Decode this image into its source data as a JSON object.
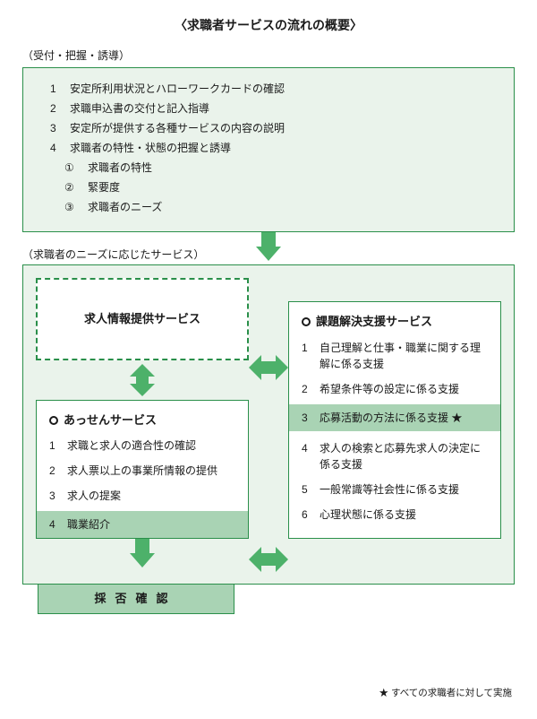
{
  "colors": {
    "accent": "#2a8f4a",
    "accent_fill": "#4db16a",
    "light_bg": "#eaf3eb",
    "highlight_bg": "#a9d3b4",
    "text": "#1a1a1a",
    "white": "#ffffff"
  },
  "title": "〈求職者サービスの流れの概要〉",
  "section1": {
    "label": "（受付・把握・誘導）",
    "items": [
      {
        "n": "1",
        "t": "安定所利用状況とハローワークカードの確認"
      },
      {
        "n": "2",
        "t": "求職申込書の交付と記入指導"
      },
      {
        "n": "3",
        "t": "安定所が提供する各種サービスの内容の説明"
      },
      {
        "n": "4",
        "t": "求職者の特性・状態の把握と誘導"
      }
    ],
    "subitems": [
      {
        "cn": "①",
        "t": "求職者の特性"
      },
      {
        "cn": "②",
        "t": "緊要度"
      },
      {
        "cn": "③",
        "t": "求職者のニーズ"
      }
    ]
  },
  "section2": {
    "label": "（求職者のニーズに応じたサービス）",
    "left_top": {
      "title": "求人情報提供サービス"
    },
    "left_bottom": {
      "title": "あっせんサービス",
      "items": [
        {
          "n": "1",
          "t": "求職と求人の適合性の確認",
          "hl": false
        },
        {
          "n": "2",
          "t": "求人票以上の事業所情報の提供",
          "hl": false
        },
        {
          "n": "3",
          "t": "求人の提案",
          "hl": false
        },
        {
          "n": "4",
          "t": "職業紹介",
          "hl": true
        }
      ]
    },
    "right": {
      "title": "課題解決支援サービス",
      "items": [
        {
          "n": "1",
          "t": "自己理解と仕事・職業に関する理解に係る支援",
          "hl": false
        },
        {
          "n": "2",
          "t": "希望条件等の設定に係る支援",
          "hl": false
        },
        {
          "n": "3",
          "t": "応募活動の方法に係る支援 ★",
          "hl": true
        },
        {
          "n": "4",
          "t": "求人の検索と応募先求人の決定に係る支援",
          "hl": false
        },
        {
          "n": "5",
          "t": "一般常識等社会性に係る支援",
          "hl": false
        },
        {
          "n": "6",
          "t": "心理状態に係る支援",
          "hl": false
        }
      ]
    }
  },
  "final": "採否確認",
  "footnote": "★ すべての求職者に対して実施"
}
